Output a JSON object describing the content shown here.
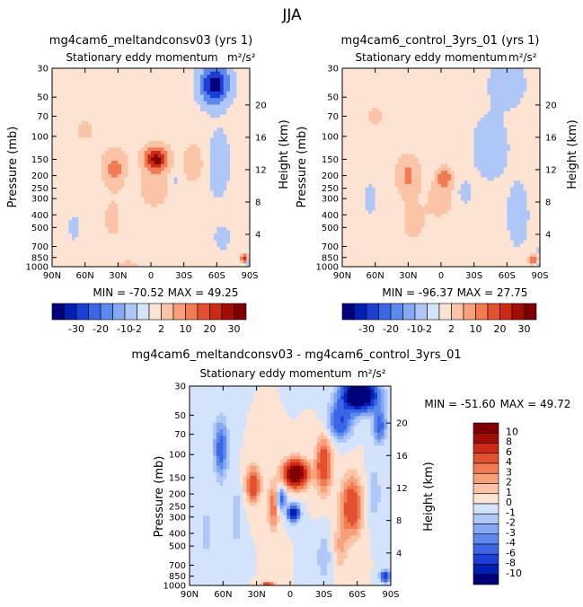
{
  "page_title": "JJA",
  "chart_data": [
    {
      "id": "top-left",
      "type": "heatmap",
      "title": "mg4cam6_meltandconsv03 (yrs 1)",
      "subtitle": "Stationary eddy momentum",
      "units_label": "m²/s²",
      "xlabel": "",
      "ylabel": "Pressure (mb)",
      "ylabel_right": "Height (km)",
      "x_ticks": [
        "90N",
        "60N",
        "30N",
        "0",
        "30S",
        "60S",
        "90S"
      ],
      "x_range": [
        -90,
        90
      ],
      "y_ticks": [
        30,
        50,
        70,
        100,
        150,
        200,
        250,
        300,
        400,
        500,
        700,
        850,
        1000
      ],
      "y_range": [
        30,
        1000
      ],
      "height_ticks": [
        4,
        8,
        12,
        16,
        20
      ],
      "min_label": "MIN = -70.52",
      "max_label": "MAX =  49.25",
      "levels": [
        -30,
        -20,
        -10,
        -2,
        2,
        10,
        20,
        30
      ],
      "blobs": [
        {
          "lat": -33,
          "p": 175,
          "w": 9,
          "h": 0.28,
          "v": 14
        },
        {
          "lat": -35,
          "p": 430,
          "w": 10,
          "h": 0.45,
          "v": 3
        },
        {
          "lat": 5,
          "p": 150,
          "w": 10,
          "h": 0.2,
          "v": 34
        },
        {
          "lat": 3,
          "p": 240,
          "w": 14,
          "h": 0.38,
          "v": 5
        },
        {
          "lat": -15,
          "p": 220,
          "w": 6,
          "h": 0.22,
          "v": -3
        },
        {
          "lat": 22,
          "p": 220,
          "w": 7,
          "h": 0.25,
          "v": -3
        },
        {
          "lat": 38,
          "p": 160,
          "w": 9,
          "h": 0.3,
          "v": 6
        },
        {
          "lat": 58,
          "p": 40,
          "w": 12,
          "h": 0.32,
          "v": -36
        },
        {
          "lat": 62,
          "p": 160,
          "w": 9,
          "h": 0.55,
          "v": -7
        },
        {
          "lat": 65,
          "p": 600,
          "w": 8,
          "h": 0.25,
          "v": -4
        },
        {
          "lat": -20,
          "p": 980,
          "w": 8,
          "h": 0.06,
          "v": 8
        },
        {
          "lat": 85,
          "p": 870,
          "w": 3,
          "h": 0.07,
          "v": 25
        },
        {
          "lat": 88,
          "p": 940,
          "w": 2,
          "h": 0.04,
          "v": -15
        },
        {
          "lat": -60,
          "p": 90,
          "w": 14,
          "h": 0.3,
          "v": 2.5
        },
        {
          "lat": -70,
          "p": 500,
          "w": 10,
          "h": 0.5,
          "v": -2.4
        }
      ]
    },
    {
      "id": "top-right",
      "type": "heatmap",
      "title": "mg4cam6_control_3yrs_01 (yrs 1)",
      "subtitle": "Stationary eddy momentum",
      "units_label": "m²/s²",
      "xlabel": "",
      "ylabel": "Pressure (mb)",
      "ylabel_right": "Height (km)",
      "x_ticks": [
        "90N",
        "60N",
        "30N",
        "0",
        "30S",
        "60S",
        "90S"
      ],
      "x_range": [
        -90,
        90
      ],
      "y_ticks": [
        30,
        50,
        70,
        100,
        150,
        200,
        250,
        300,
        400,
        500,
        700,
        850,
        1000
      ],
      "y_range": [
        30,
        1000
      ],
      "height_ticks": [
        4,
        8,
        12,
        16,
        20
      ],
      "min_label": "MIN = -96.37",
      "max_label": "MAX =  27.75",
      "levels": [
        -30,
        -20,
        -10,
        -2,
        2,
        10,
        20,
        30
      ],
      "blobs": [
        {
          "lat": -30,
          "p": 200,
          "w": 9,
          "h": 0.3,
          "v": 12
        },
        {
          "lat": -25,
          "p": 450,
          "w": 14,
          "h": 0.45,
          "v": 3
        },
        {
          "lat": 3,
          "p": 210,
          "w": 6,
          "h": 0.16,
          "v": 18
        },
        {
          "lat": 0,
          "p": 300,
          "w": 12,
          "h": 0.35,
          "v": 4
        },
        {
          "lat": 22,
          "p": 270,
          "w": 6,
          "h": 0.18,
          "v": -6
        },
        {
          "lat": 45,
          "p": 120,
          "w": 14,
          "h": 0.5,
          "v": -8
        },
        {
          "lat": 60,
          "p": 40,
          "w": 14,
          "h": 0.35,
          "v": -9
        },
        {
          "lat": 70,
          "p": 400,
          "w": 10,
          "h": 0.6,
          "v": -5
        },
        {
          "lat": -60,
          "p": 70,
          "w": 14,
          "h": 0.3,
          "v": 2.5
        },
        {
          "lat": -65,
          "p": 300,
          "w": 12,
          "h": 0.6,
          "v": -2.4
        },
        {
          "lat": 84,
          "p": 880,
          "w": 4,
          "h": 0.08,
          "v": 20
        },
        {
          "lat": 88,
          "p": 950,
          "w": 2,
          "h": 0.04,
          "v": -12
        },
        {
          "lat": 88,
          "p": 760,
          "w": 3,
          "h": 0.05,
          "v": -5
        }
      ]
    },
    {
      "id": "bottom",
      "type": "heatmap",
      "title": "mg4cam6_meltandconsv03 - mg4cam6_control_3yrs_01",
      "subtitle": "Stationary eddy momentum",
      "units_label": "m²/s²",
      "xlabel": "",
      "ylabel": "Pressure (mb)",
      "ylabel_right": "Height (km)",
      "x_ticks": [
        "90N",
        "60N",
        "30N",
        "0",
        "30S",
        "60S",
        "90S"
      ],
      "x_range": [
        -90,
        90
      ],
      "y_ticks": [
        30,
        50,
        70,
        100,
        150,
        200,
        250,
        300,
        400,
        500,
        700,
        850,
        1000
      ],
      "y_range": [
        30,
        1000
      ],
      "height_ticks": [
        4,
        8,
        12,
        16,
        20
      ],
      "min_label": "MIN = -51.60",
      "max_label": "MAX =  49.72",
      "levels": [
        -10,
        -8,
        -6,
        -4,
        -3,
        -2,
        -1,
        0,
        1,
        2,
        3,
        4,
        6,
        8,
        10
      ],
      "blobs": [
        {
          "lat": 5,
          "p": 140,
          "w": 10,
          "h": 0.22,
          "v": 14
        },
        {
          "lat": 3,
          "p": 280,
          "w": 5,
          "h": 0.14,
          "v": -10
        },
        {
          "lat": -8,
          "p": 220,
          "w": 4,
          "h": 0.2,
          "v": -5
        },
        {
          "lat": -33,
          "p": 170,
          "w": 6,
          "h": 0.3,
          "v": 6
        },
        {
          "lat": -48,
          "p": 300,
          "w": 5,
          "h": 0.5,
          "v": -2
        },
        {
          "lat": -62,
          "p": 90,
          "w": 6,
          "h": 0.5,
          "v": -5
        },
        {
          "lat": -15,
          "p": 250,
          "w": 5,
          "h": 0.4,
          "v": 4
        },
        {
          "lat": 30,
          "p": 120,
          "w": 7,
          "h": 0.45,
          "v": 6
        },
        {
          "lat": 55,
          "p": 250,
          "w": 9,
          "h": 0.5,
          "v": 6
        },
        {
          "lat": 45,
          "p": 55,
          "w": 10,
          "h": 0.3,
          "v": -6
        },
        {
          "lat": 62,
          "p": 35,
          "w": 14,
          "h": 0.25,
          "v": -18
        },
        {
          "lat": 80,
          "p": 60,
          "w": 6,
          "h": 0.3,
          "v": -5
        },
        {
          "lat": 75,
          "p": 200,
          "w": 6,
          "h": 0.45,
          "v": -2
        },
        {
          "lat": 30,
          "p": 600,
          "w": 6,
          "h": 0.4,
          "v": -2
        },
        {
          "lat": 45,
          "p": 500,
          "w": 6,
          "h": 0.4,
          "v": 2
        },
        {
          "lat": 85,
          "p": 850,
          "w": 4,
          "h": 0.1,
          "v": -8
        },
        {
          "lat": -75,
          "p": 400,
          "w": 6,
          "h": 0.5,
          "v": -1.5
        },
        {
          "lat": -20,
          "p": 980,
          "w": 5,
          "h": 0.05,
          "v": 6
        }
      ]
    }
  ],
  "colorbars": {
    "left": {
      "labels": [
        "-30",
        "-20",
        "-10",
        "-2",
        "2",
        "10",
        "20",
        "30"
      ]
    },
    "right": {
      "labels": [
        "-30",
        "-20",
        "-10",
        "-2",
        "2",
        "10",
        "20",
        "30"
      ]
    },
    "vertical": {
      "labels": [
        "10",
        "8",
        "6",
        "4",
        "3",
        "2",
        "1",
        "0",
        "-1",
        "-2",
        "-3",
        "-4",
        "-6",
        "-8",
        "-10"
      ]
    }
  },
  "colors": {
    "palette": [
      "#00007d",
      "#0020b4",
      "#1a3fd6",
      "#3a67e6",
      "#5d89ee",
      "#86a9f3",
      "#aec7f7",
      "#d3e3fb",
      "#fde4d2",
      "#fbc4a6",
      "#f8a07a",
      "#f27b54",
      "#e4512f",
      "#cc2a12",
      "#a50c00",
      "#7f0000"
    ]
  }
}
